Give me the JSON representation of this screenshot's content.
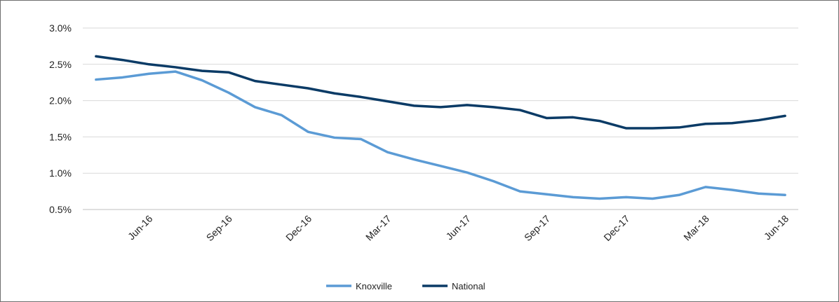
{
  "chart_data": {
    "type": "line",
    "title": "",
    "xlabel": "",
    "ylabel": "",
    "ylim": [
      0.5,
      3.0
    ],
    "yticks": [
      0.5,
      1.0,
      1.5,
      2.0,
      2.5,
      3.0
    ],
    "ytick_labels": [
      "0.5%",
      "1.0%",
      "1.5%",
      "2.0%",
      "2.5%",
      "3.0%"
    ],
    "y_unit": "%",
    "grid": "horizontal",
    "legend_position": "bottom-center",
    "x": [
      "Apr-16",
      "May-16",
      "Jun-16",
      "Jul-16",
      "Aug-16",
      "Sep-16",
      "Oct-16",
      "Nov-16",
      "Dec-16",
      "Jan-17",
      "Feb-17",
      "Mar-17",
      "Apr-17",
      "May-17",
      "Jun-17",
      "Jul-17",
      "Aug-17",
      "Sep-17",
      "Oct-17",
      "Nov-17",
      "Dec-17",
      "Jan-18",
      "Feb-18",
      "Mar-18",
      "Apr-18",
      "May-18",
      "Jun-18"
    ],
    "xtick_labels": [
      "Jun-16",
      "Sep-16",
      "Dec-16",
      "Mar-17",
      "Jun-17",
      "Sep-17",
      "Dec-17",
      "Mar-18",
      "Jun-18"
    ],
    "series": [
      {
        "name": "Knoxville",
        "color": "#5b9bd5",
        "values": [
          2.29,
          2.32,
          2.37,
          2.4,
          2.28,
          2.11,
          1.91,
          1.8,
          1.57,
          1.49,
          1.47,
          1.29,
          1.19,
          1.1,
          1.01,
          0.89,
          0.75,
          0.71,
          0.67,
          0.65,
          0.67,
          0.65,
          0.7,
          0.81,
          0.77,
          0.72,
          0.7
        ]
      },
      {
        "name": "National",
        "color": "#0b3b66",
        "values": [
          2.61,
          2.56,
          2.5,
          2.46,
          2.41,
          2.39,
          2.27,
          2.22,
          2.17,
          2.1,
          2.05,
          1.99,
          1.93,
          1.91,
          1.94,
          1.91,
          1.87,
          1.76,
          1.77,
          1.72,
          1.62,
          1.62,
          1.63,
          1.68,
          1.69,
          1.73,
          1.79
        ]
      }
    ]
  }
}
